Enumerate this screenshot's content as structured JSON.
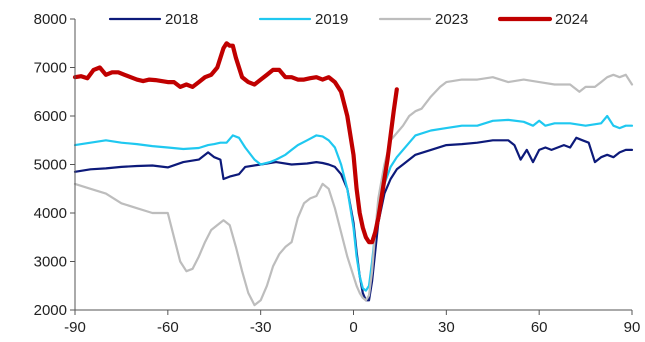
{
  "chart_data": {
    "type": "line",
    "title": "",
    "xlabel": "",
    "ylabel": "",
    "xlim": [
      -90,
      90
    ],
    "ylim": [
      2000,
      8000
    ],
    "x_ticks": [
      -90,
      -60,
      -30,
      0,
      30,
      60,
      90
    ],
    "y_ticks": [
      2000,
      3000,
      4000,
      5000,
      6000,
      7000,
      8000
    ],
    "grid": false,
    "legend_position": "top",
    "series": [
      {
        "name": "2018",
        "color": "#0d1a7a",
        "x": [
          -90,
          -85,
          -80,
          -75,
          -70,
          -65,
          -60,
          -55,
          -50,
          -47,
          -45,
          -43,
          -42,
          -40,
          -37,
          -35,
          -30,
          -25,
          -20,
          -15,
          -12,
          -10,
          -8,
          -6,
          -4,
          -2,
          0,
          1,
          2,
          3,
          4,
          5,
          6,
          7,
          8,
          10,
          12,
          14,
          16,
          18,
          20,
          25,
          30,
          35,
          40,
          45,
          50,
          52,
          54,
          56,
          58,
          60,
          62,
          64,
          66,
          68,
          70,
          72,
          74,
          76,
          78,
          80,
          82,
          84,
          86,
          88,
          90
        ],
        "y": [
          4850,
          4900,
          4920,
          4950,
          4970,
          4980,
          4940,
          5050,
          5100,
          5250,
          5150,
          5100,
          4700,
          4750,
          4800,
          4950,
          5000,
          5050,
          5000,
          5020,
          5050,
          5030,
          5000,
          4950,
          4800,
          4500,
          3800,
          3200,
          2700,
          2350,
          2200,
          2200,
          2600,
          3200,
          3800,
          4400,
          4700,
          4900,
          5000,
          5100,
          5200,
          5300,
          5400,
          5420,
          5450,
          5500,
          5500,
          5400,
          5100,
          5300,
          5050,
          5300,
          5350,
          5300,
          5350,
          5400,
          5350,
          5550,
          5500,
          5450,
          5050,
          5150,
          5200,
          5150,
          5250,
          5300,
          5300
        ]
      },
      {
        "name": "2019",
        "color": "#1fc8f0",
        "x": [
          -90,
          -85,
          -80,
          -75,
          -70,
          -65,
          -60,
          -55,
          -50,
          -47,
          -45,
          -43,
          -41,
          -39,
          -37,
          -35,
          -32,
          -30,
          -27,
          -25,
          -22,
          -20,
          -18,
          -15,
          -12,
          -10,
          -8,
          -6,
          -4,
          -2,
          0,
          1,
          2,
          3,
          4,
          5,
          6,
          7,
          8,
          10,
          12,
          14,
          16,
          18,
          20,
          25,
          30,
          35,
          40,
          45,
          50,
          55,
          58,
          60,
          62,
          65,
          70,
          75,
          80,
          82,
          84,
          86,
          88,
          90
        ],
        "y": [
          5400,
          5450,
          5500,
          5450,
          5420,
          5380,
          5350,
          5320,
          5340,
          5400,
          5420,
          5450,
          5450,
          5600,
          5550,
          5350,
          5100,
          5000,
          5050,
          5100,
          5200,
          5300,
          5400,
          5500,
          5600,
          5580,
          5500,
          5350,
          5000,
          4500,
          3700,
          3100,
          2700,
          2450,
          2400,
          2500,
          3000,
          3600,
          4100,
          4600,
          4950,
          5150,
          5300,
          5450,
          5600,
          5700,
          5750,
          5800,
          5800,
          5900,
          5920,
          5880,
          5800,
          5900,
          5800,
          5850,
          5850,
          5800,
          5850,
          6000,
          5800,
          5750,
          5800,
          5800
        ]
      },
      {
        "name": "2023",
        "color": "#bdbdbd",
        "x": [
          -90,
          -85,
          -80,
          -75,
          -70,
          -65,
          -60,
          -58,
          -56,
          -54,
          -52,
          -50,
          -48,
          -46,
          -44,
          -42,
          -40,
          -38,
          -36,
          -34,
          -32,
          -30,
          -28,
          -26,
          -24,
          -22,
          -20,
          -18,
          -16,
          -14,
          -12,
          -10,
          -8,
          -6,
          -4,
          -2,
          0,
          1,
          2,
          3,
          4,
          5,
          6,
          7,
          8,
          10,
          12,
          14,
          16,
          18,
          20,
          22,
          25,
          28,
          30,
          35,
          40,
          45,
          50,
          55,
          60,
          65,
          70,
          73,
          75,
          78,
          80,
          82,
          84,
          86,
          88,
          90
        ],
        "y": [
          4600,
          4500,
          4400,
          4200,
          4100,
          4000,
          4000,
          3500,
          3000,
          2800,
          2850,
          3100,
          3400,
          3650,
          3750,
          3850,
          3750,
          3300,
          2800,
          2350,
          2100,
          2200,
          2500,
          2900,
          3150,
          3300,
          3400,
          3900,
          4200,
          4300,
          4350,
          4600,
          4500,
          4100,
          3600,
          3100,
          2700,
          2500,
          2350,
          2250,
          2200,
          2300,
          2800,
          3600,
          4300,
          5000,
          5500,
          5650,
          5800,
          6000,
          6100,
          6150,
          6400,
          6600,
          6700,
          6750,
          6750,
          6800,
          6700,
          6750,
          6700,
          6650,
          6650,
          6500,
          6600,
          6600,
          6700,
          6800,
          6850,
          6800,
          6850,
          6650
        ]
      },
      {
        "name": "2024",
        "color": "#c00000",
        "x": [
          -90,
          -88,
          -86,
          -84,
          -82,
          -80,
          -78,
          -76,
          -74,
          -72,
          -70,
          -68,
          -66,
          -64,
          -62,
          -60,
          -58,
          -56,
          -54,
          -52,
          -50,
          -48,
          -46,
          -44,
          -42,
          -41,
          -40,
          -39,
          -38,
          -36,
          -34,
          -32,
          -30,
          -28,
          -26,
          -24,
          -22,
          -20,
          -18,
          -16,
          -14,
          -12,
          -10,
          -8,
          -6,
          -4,
          -2,
          0,
          1,
          2,
          3,
          4,
          5,
          6,
          7,
          8,
          9,
          10,
          11,
          12,
          13,
          14
        ],
        "y": [
          6800,
          6820,
          6780,
          6950,
          7000,
          6850,
          6900,
          6900,
          6850,
          6800,
          6750,
          6720,
          6750,
          6740,
          6720,
          6700,
          6700,
          6600,
          6650,
          6600,
          6700,
          6800,
          6850,
          7000,
          7400,
          7500,
          7450,
          7450,
          7200,
          6800,
          6700,
          6650,
          6750,
          6850,
          6950,
          6950,
          6800,
          6800,
          6750,
          6750,
          6780,
          6800,
          6750,
          6800,
          6700,
          6500,
          6000,
          5200,
          4500,
          4000,
          3700,
          3500,
          3400,
          3400,
          3600,
          3900,
          4300,
          4700,
          5100,
          5600,
          6100,
          6550
        ]
      }
    ]
  }
}
